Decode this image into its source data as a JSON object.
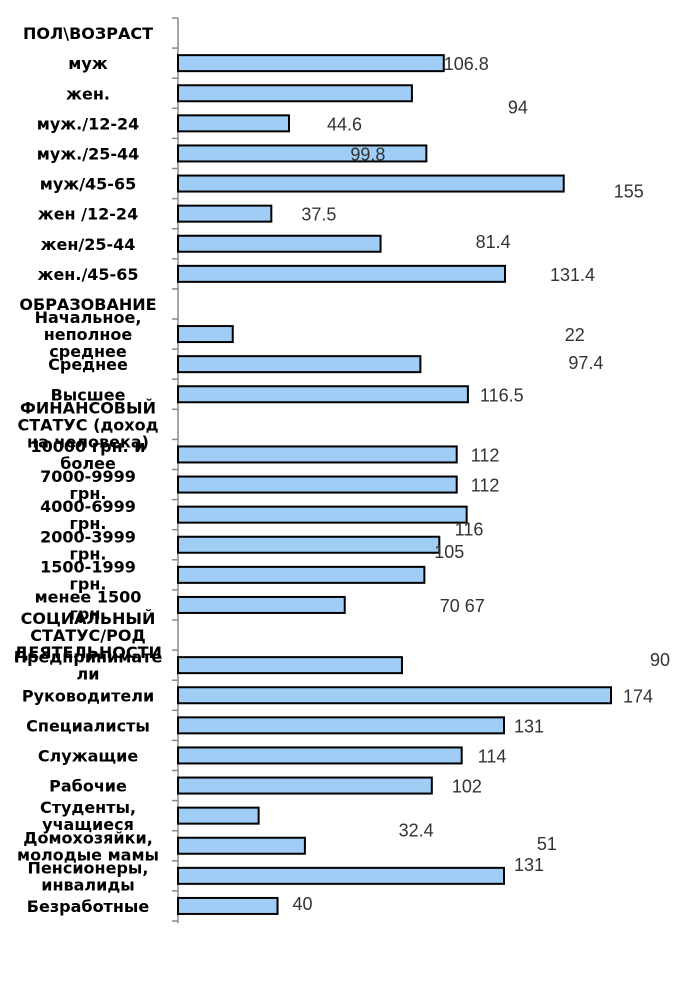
{
  "chart_data": {
    "type": "bar",
    "orientation": "horizontal",
    "title": "",
    "xlabel": "",
    "ylabel": "",
    "grid": false,
    "bar_color": "#9fcdf5",
    "categories": [
      "ПОЛ\\ВОЗРАСТ",
      "муж",
      "жен.",
      "муж./12-24",
      "муж./25-44",
      "муж/45-65",
      "жен /12-24",
      "жен/25-44",
      "жен./45-65",
      "ОБРАЗОВАНИЕ",
      "Начальное, неполное среднее",
      "Среднее",
      "Высшее",
      "ФИНАНСОВЫЙ СТАТУС (доход на человека)",
      "10000 грн. и более",
      "7000-9999 грн.",
      "4000-6999 грн.",
      "2000-3999 грн.",
      "1500-1999 грн.",
      "менее 1500 грн.",
      "СОЦИАЛЬНЫЙ СТАТУС/РОД ДЕЯТЕЛЬНОСТИ",
      "Предприниматели",
      "Руководители",
      "Специалисты",
      "Служащие",
      "Рабочие",
      "Студенты, учащиеся",
      "Домохозяйки, молодые мамы",
      "Пенсионеры, инвалиды",
      "Безработные"
    ],
    "values": [
      null,
      106.8,
      94,
      44.6,
      99.8,
      155,
      37.5,
      81.4,
      131.4,
      null,
      22,
      97.4,
      116.5,
      null,
      112,
      112,
      116,
      105,
      99,
      67,
      null,
      90,
      174,
      131,
      114,
      102,
      32.4,
      51,
      131,
      40
    ],
    "value_labels": [
      "",
      "106.8",
      "94",
      "44.6",
      "99.8",
      "155",
      "37.5",
      "81.4",
      "131.4",
      "",
      "22",
      "97.4",
      "116.5",
      "",
      "112",
      "112",
      "116",
      "105",
      "",
      "70 67",
      "",
      "90",
      "174",
      "131",
      "114",
      "102",
      "32.4",
      "51",
      "131",
      "40"
    ],
    "xlim": [
      0,
      175
    ]
  }
}
